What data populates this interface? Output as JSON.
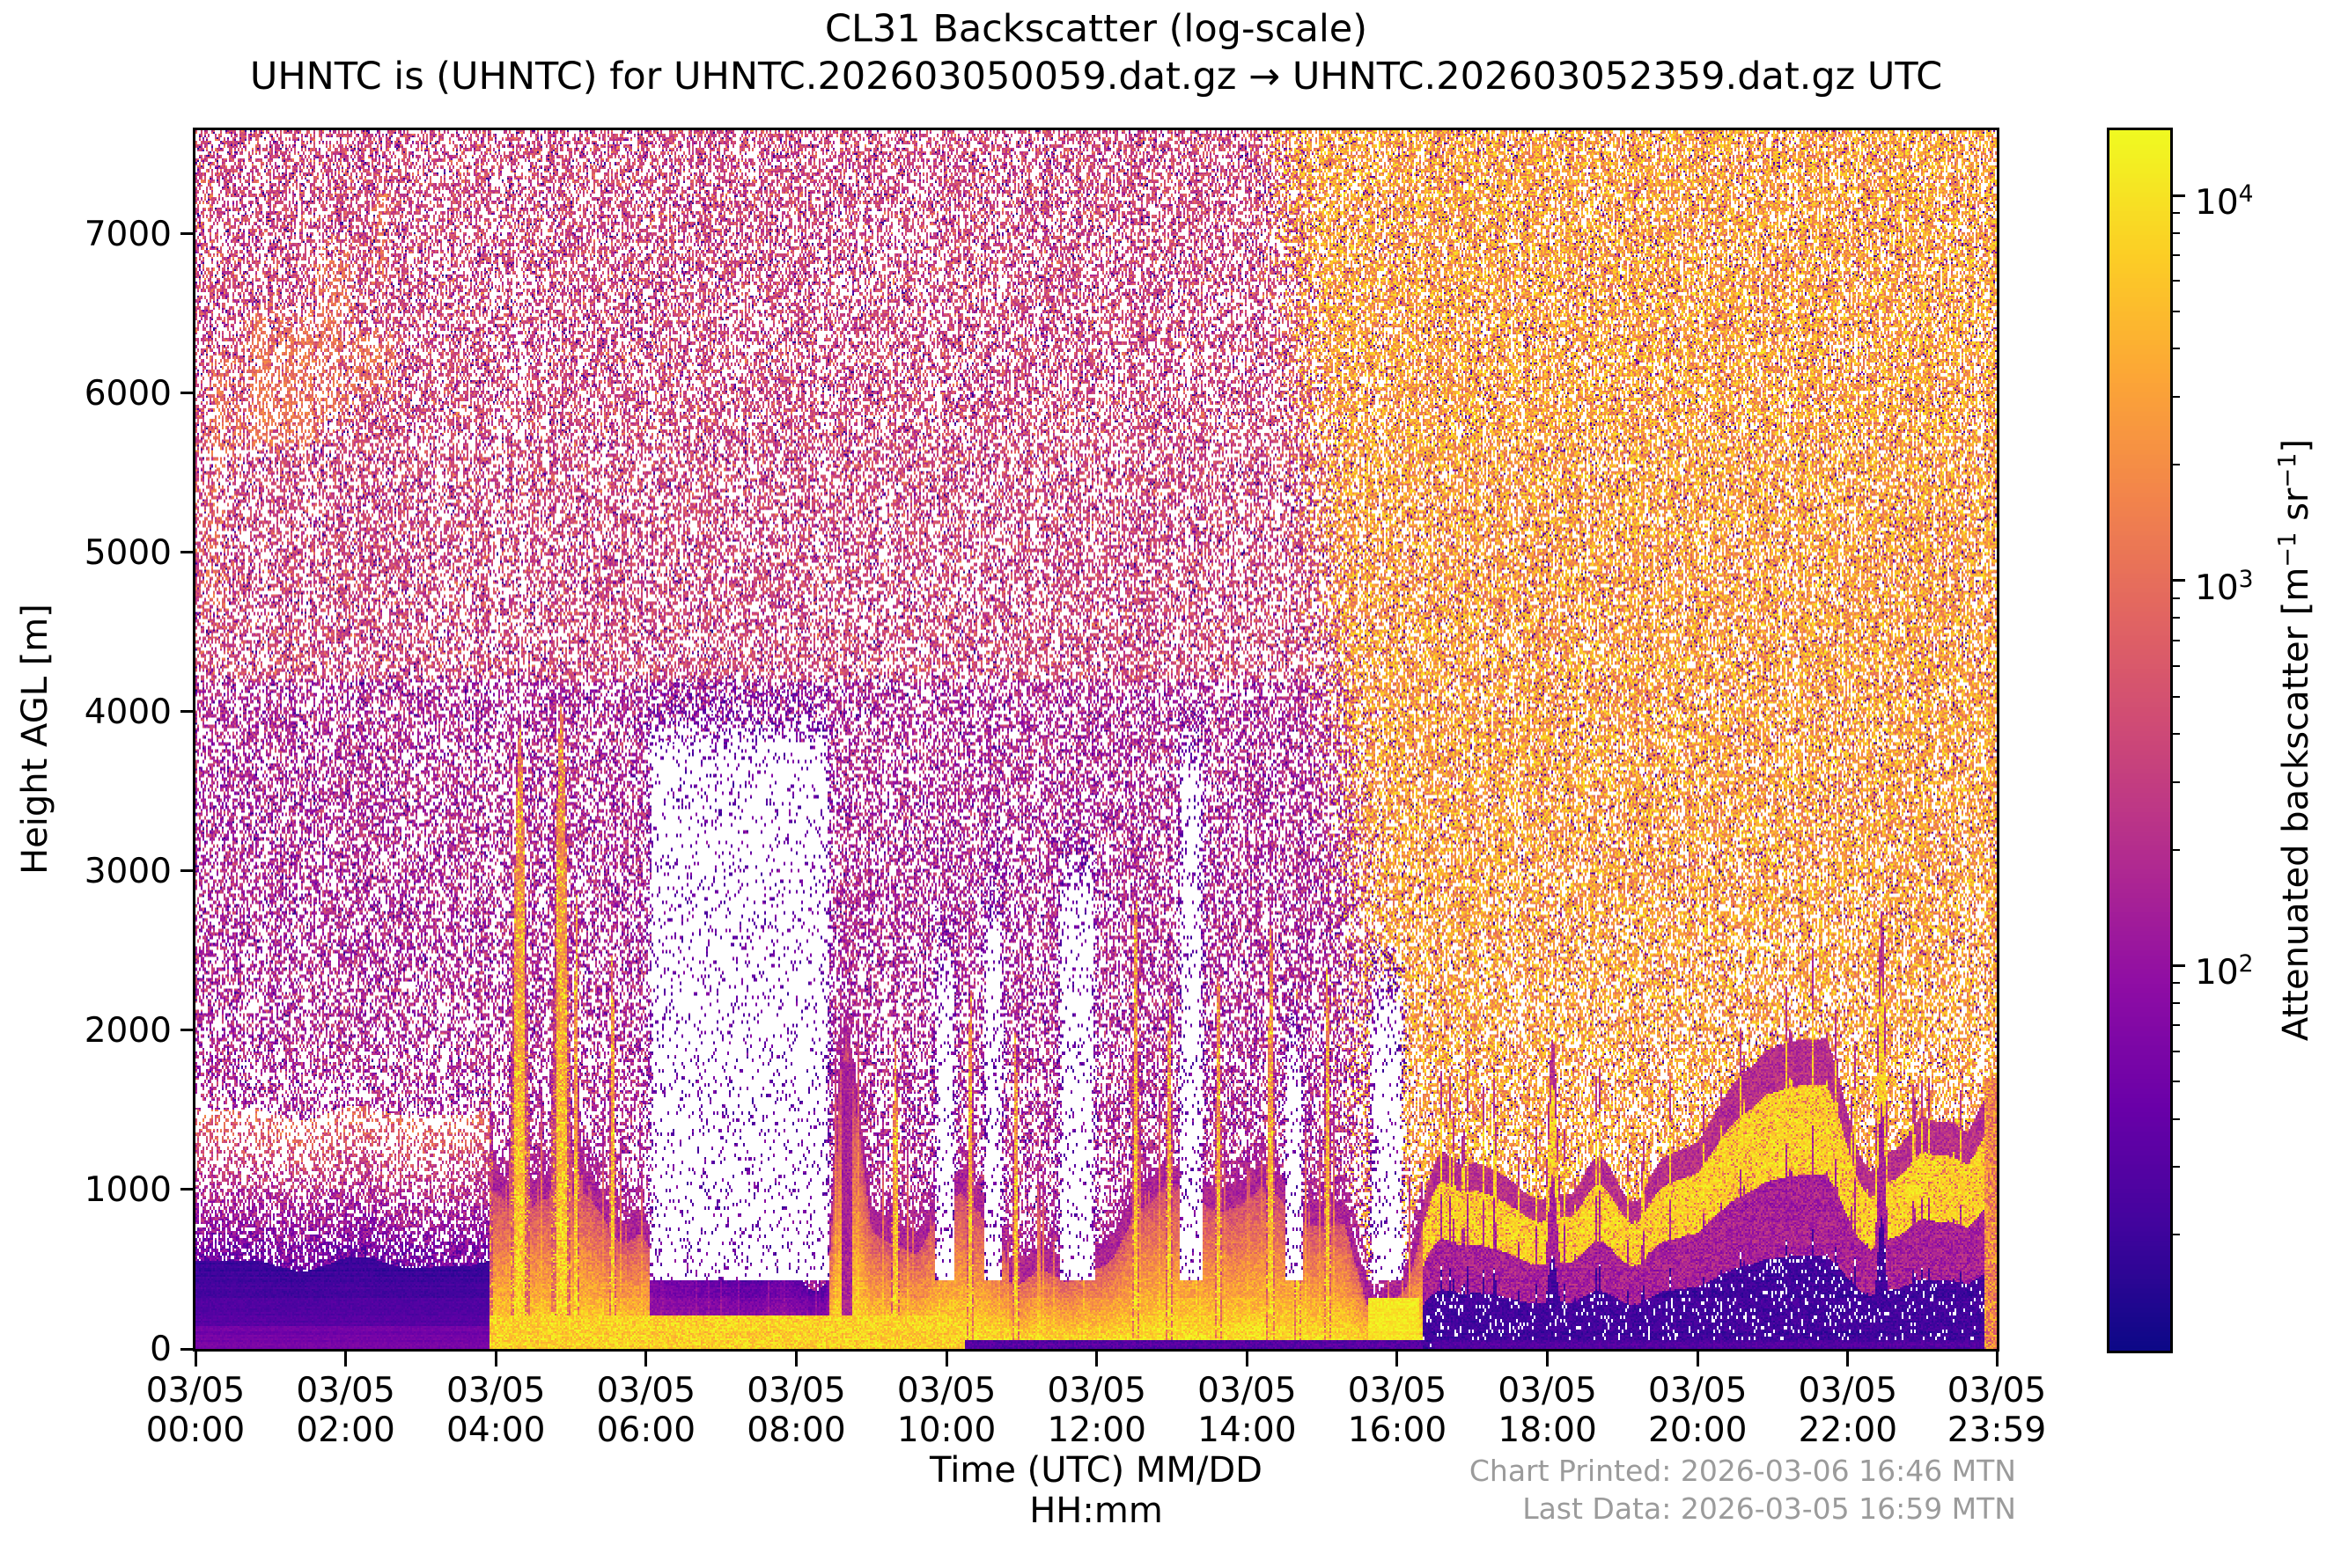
{
  "chart_data": {
    "type": "heatmap",
    "title": "CL31 Backscatter (log-scale)",
    "subtitle": "UHNTC is (UHNTC) for UHNTC.202603050059.dat.gz → UHNTC.202603052359.dat.gz UTC",
    "xlabel_line1": "Time (UTC) MM/DD",
    "xlabel_line2": "HH:mm",
    "ylabel": "Height AGL [m]",
    "ylim": [
      0,
      7650
    ],
    "y_ticks": [
      0,
      1000,
      2000,
      3000,
      4000,
      5000,
      6000,
      7000
    ],
    "x_range_hours": [
      0,
      23.983
    ],
    "x_ticks": [
      {
        "date": "03/05",
        "time": "00:00",
        "hour": 0
      },
      {
        "date": "03/05",
        "time": "02:00",
        "hour": 2
      },
      {
        "date": "03/05",
        "time": "04:00",
        "hour": 4
      },
      {
        "date": "03/05",
        "time": "06:00",
        "hour": 6
      },
      {
        "date": "03/05",
        "time": "08:00",
        "hour": 8
      },
      {
        "date": "03/05",
        "time": "10:00",
        "hour": 10
      },
      {
        "date": "03/05",
        "time": "12:00",
        "hour": 12
      },
      {
        "date": "03/05",
        "time": "14:00",
        "hour": 14
      },
      {
        "date": "03/05",
        "time": "16:00",
        "hour": 16
      },
      {
        "date": "03/05",
        "time": "18:00",
        "hour": 18
      },
      {
        "date": "03/05",
        "time": "20:00",
        "hour": 20
      },
      {
        "date": "03/05",
        "time": "22:00",
        "hour": 22
      },
      {
        "date": "03/05",
        "time": "23:59",
        "hour": 23.983
      }
    ],
    "colorbar": {
      "colormap": "plasma",
      "log_range": [
        1.0,
        4.17
      ],
      "ticks": [
        {
          "base": "10",
          "exp": "2",
          "log": 2
        },
        {
          "base": "10",
          "exp": "3",
          "log": 3
        },
        {
          "base": "10",
          "exp": "4",
          "log": 4
        }
      ],
      "label_segments": [
        {
          "text": "Attenuated backscatter [m"
        },
        {
          "text": "−1",
          "sup": true
        },
        {
          "text": " sr"
        },
        {
          "text": "−1",
          "sup": true
        },
        {
          "text": "]"
        }
      ]
    },
    "colormap_stops": [
      [
        0.0,
        "#0d0887"
      ],
      [
        0.1,
        "#41049d"
      ],
      [
        0.2,
        "#6a00a8"
      ],
      [
        0.3,
        "#8f0da4"
      ],
      [
        0.4,
        "#b12a90"
      ],
      [
        0.5,
        "#cc4778"
      ],
      [
        0.6,
        "#e16462"
      ],
      [
        0.7,
        "#f2844b"
      ],
      [
        0.8,
        "#fca636"
      ],
      [
        0.9,
        "#fcce25"
      ],
      [
        1.0,
        "#f0f921"
      ]
    ],
    "render_model": {
      "seed": 7,
      "grid": {
        "cols": 1023,
        "rows": 693
      },
      "hours": 23.983,
      "h_max": 7650,
      "clean": {
        "t_end": 3.92,
        "top_base": 430,
        "top_amp": 260,
        "fade": 950
      },
      "layer_profile": [
        [
          3.92,
          1050
        ],
        [
          4.6,
          1200
        ],
        [
          5.2,
          1150
        ],
        [
          5.9,
          850
        ],
        [
          6.15,
          520
        ],
        [
          7.3,
          480
        ],
        [
          8.4,
          560
        ],
        [
          8.66,
          2080
        ],
        [
          9.0,
          950
        ],
        [
          9.6,
          800
        ],
        [
          10.2,
          1050
        ],
        [
          10.9,
          750
        ],
        [
          11.6,
          650
        ],
        [
          12.3,
          950
        ],
        [
          12.9,
          1050
        ],
        [
          13.6,
          850
        ],
        [
          14.2,
          1000
        ],
        [
          14.8,
          800
        ],
        [
          15.3,
          900
        ],
        [
          15.7,
          420
        ],
        [
          16.1,
          600
        ],
        [
          16.6,
          1050
        ],
        [
          17.3,
          1250
        ],
        [
          18.4,
          1050
        ],
        [
          19.2,
          950
        ],
        [
          20.0,
          1150
        ],
        [
          20.9,
          1750
        ],
        [
          21.7,
          1850
        ],
        [
          22.3,
          1250
        ],
        [
          23.0,
          1350
        ],
        [
          23.6,
          1150
        ],
        [
          23.98,
          1500
        ]
      ],
      "bump_amp": 240,
      "spikes": [
        [
          3.78,
          0.17,
          3620
        ],
        [
          4.32,
          0.13,
          3900
        ],
        [
          4.87,
          0.13,
          4060
        ],
        [
          5.07,
          0.04,
          2900
        ],
        [
          5.55,
          0.05,
          2500
        ],
        [
          9.32,
          0.05,
          1950
        ],
        [
          10.32,
          0.05,
          2300
        ],
        [
          10.92,
          0.04,
          2050
        ],
        [
          12.52,
          0.05,
          2950
        ],
        [
          12.97,
          0.05,
          2250
        ],
        [
          13.62,
          0.05,
          2450
        ],
        [
          14.32,
          0.06,
          2700
        ],
        [
          14.67,
          0.05,
          2300
        ],
        [
          15.07,
          0.05,
          2450
        ],
        [
          18.07,
          0.11,
          1950
        ],
        [
          22.45,
          0.09,
          2750
        ],
        [
          23.9,
          0.1,
          1700
        ]
      ],
      "white_zones": [
        [
          6.05,
          8.45,
          4250
        ],
        [
          9.85,
          10.12,
          2800
        ],
        [
          10.5,
          10.75,
          3100
        ],
        [
          11.5,
          11.98,
          3350
        ],
        [
          13.1,
          13.42,
          4100
        ],
        [
          14.5,
          14.75,
          2200
        ],
        [
          15.65,
          16.08,
          2600
        ]
      ],
      "cirrus": [
        [
          0.05,
          0.75,
          5350,
          6350,
          0.5
        ],
        [
          0.6,
          1.75,
          5550,
          6600,
          0.62
        ],
        [
          1.45,
          2.2,
          5650,
          7050,
          0.55
        ],
        [
          2.3,
          2.62,
          6600,
          7380,
          0.7
        ],
        [
          0.0,
          0.55,
          4450,
          5600,
          0.4
        ],
        [
          1.85,
          2.8,
          5850,
          6550,
          0.45
        ],
        [
          0.0,
          0.3,
          6500,
          7500,
          0.45
        ]
      ],
      "day_transition": {
        "t_mid_low": 15.55,
        "t_mid_high": 14.45,
        "h_low": 2500,
        "h_high": 7500,
        "half_width": 0.55
      },
      "purple_core": {
        "t": 8.67,
        "hw": 0.07,
        "h_top": 1800
      },
      "bottom": {
        "glow_end": 10.25,
        "glow_h": 210,
        "bright": [
          15.62,
          16.3,
          320
        ],
        "dark_strip_h": 58,
        "right_edge_t": 23.82,
        "right_edge_h": 1700
      }
    }
  },
  "footer": {
    "printed": "Chart Printed: 2026-03-06 16:46 MTN",
    "last_data": "Last Data: 2026-03-05 16:59 MTN"
  }
}
